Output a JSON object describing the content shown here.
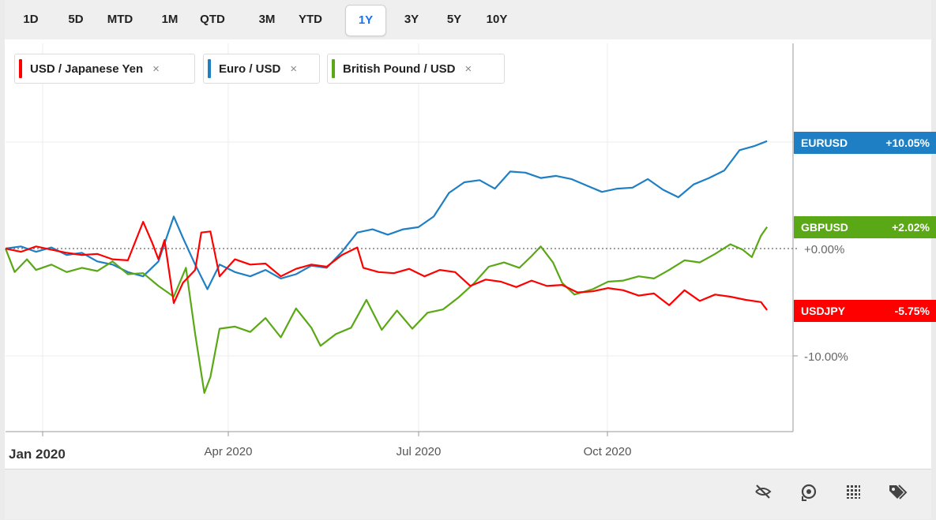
{
  "range_buttons": [
    {
      "label": "1D",
      "active": false
    },
    {
      "label": "5D",
      "active": false
    },
    {
      "label": "MTD",
      "active": false
    },
    {
      "label": "1M",
      "active": false
    },
    {
      "label": "QTD",
      "active": false
    },
    {
      "label": "3M",
      "active": false
    },
    {
      "label": "YTD",
      "active": false
    },
    {
      "label": "1Y",
      "active": true
    },
    {
      "label": "3Y",
      "active": false
    },
    {
      "label": "5Y",
      "active": false
    },
    {
      "label": "10Y",
      "active": false
    }
  ],
  "legend": [
    {
      "label": "USD / Japanese Yen",
      "color": "#ff0000",
      "close": "×"
    },
    {
      "label": "Euro / USD",
      "color": "#1f7fc4",
      "close": "×"
    },
    {
      "label": "British Pound / USD",
      "color": "#5aa815",
      "close": "×"
    }
  ],
  "value_tags": [
    {
      "name": "EURUSD",
      "value": "+10.05%",
      "color": "#1f7fc4"
    },
    {
      "name": "GBPUSD",
      "value": "+2.02%",
      "color": "#5aa815"
    },
    {
      "name": "USDJPY",
      "value": "-5.75%",
      "color": "#ff0000"
    }
  ],
  "toolbar_icons": [
    "crosshair-off-icon",
    "reset-icon",
    "grid-icon",
    "tag-icon"
  ],
  "chart_data": {
    "type": "line",
    "x_labels": [
      "Jan 2020",
      "Apr 2020",
      "Jul 2020",
      "Oct 2020"
    ],
    "y_ticks": [
      "+0.00%",
      "-10.00%"
    ],
    "ylim": [
      -16.5,
      19
    ],
    "x_unit": "trading days since late Dec 2019",
    "xlim": [
      0,
      250
    ],
    "series": [
      {
        "name": "Euro / USD",
        "color": "#1f7fc4",
        "points": [
          [
            0,
            0
          ],
          [
            5,
            0.2
          ],
          [
            10,
            -0.3
          ],
          [
            15,
            0.1
          ],
          [
            20,
            -0.6
          ],
          [
            25,
            -0.4
          ],
          [
            30,
            -1.2
          ],
          [
            35,
            -1.5
          ],
          [
            40,
            -2.2
          ],
          [
            45,
            -2.6
          ],
          [
            50,
            -1.2
          ],
          [
            55,
            3.0
          ],
          [
            58,
            1.0
          ],
          [
            62,
            -1.5
          ],
          [
            66,
            -3.8
          ],
          [
            70,
            -1.5
          ],
          [
            75,
            -2.2
          ],
          [
            80,
            -2.6
          ],
          [
            85,
            -2.0
          ],
          [
            90,
            -2.8
          ],
          [
            95,
            -2.4
          ],
          [
            100,
            -1.6
          ],
          [
            105,
            -1.8
          ],
          [
            110,
            -0.3
          ],
          [
            115,
            1.5
          ],
          [
            120,
            1.8
          ],
          [
            125,
            1.3
          ],
          [
            130,
            1.8
          ],
          [
            135,
            2.0
          ],
          [
            140,
            3.0
          ],
          [
            145,
            5.2
          ],
          [
            150,
            6.2
          ],
          [
            155,
            6.4
          ],
          [
            160,
            5.6
          ],
          [
            165,
            7.2
          ],
          [
            170,
            7.1
          ],
          [
            175,
            6.6
          ],
          [
            180,
            6.8
          ],
          [
            185,
            6.5
          ],
          [
            190,
            5.9
          ],
          [
            195,
            5.3
          ],
          [
            200,
            5.6
          ],
          [
            205,
            5.7
          ],
          [
            210,
            6.5
          ],
          [
            215,
            5.5
          ],
          [
            220,
            4.8
          ],
          [
            225,
            6.0
          ],
          [
            230,
            6.6
          ],
          [
            235,
            7.3
          ],
          [
            240,
            9.2
          ],
          [
            245,
            9.6
          ],
          [
            249,
            10.05
          ]
        ]
      },
      {
        "name": "British Pound / USD",
        "color": "#5aa815",
        "points": [
          [
            0,
            0
          ],
          [
            3,
            -2.2
          ],
          [
            7,
            -1.0
          ],
          [
            10,
            -2.0
          ],
          [
            15,
            -1.5
          ],
          [
            20,
            -2.2
          ],
          [
            25,
            -1.8
          ],
          [
            30,
            -2.1
          ],
          [
            35,
            -1.2
          ],
          [
            40,
            -2.4
          ],
          [
            45,
            -2.3
          ],
          [
            50,
            -3.5
          ],
          [
            55,
            -4.5
          ],
          [
            59,
            -1.8
          ],
          [
            62,
            -8.0
          ],
          [
            65,
            -13.5
          ],
          [
            67,
            -12.0
          ],
          [
            70,
            -7.5
          ],
          [
            75,
            -7.3
          ],
          [
            80,
            -7.8
          ],
          [
            85,
            -6.5
          ],
          [
            90,
            -8.3
          ],
          [
            95,
            -5.6
          ],
          [
            100,
            -7.4
          ],
          [
            103,
            -9.1
          ],
          [
            108,
            -8.0
          ],
          [
            113,
            -7.4
          ],
          [
            118,
            -4.8
          ],
          [
            123,
            -7.6
          ],
          [
            128,
            -5.8
          ],
          [
            133,
            -7.5
          ],
          [
            138,
            -6.0
          ],
          [
            143,
            -5.7
          ],
          [
            148,
            -4.6
          ],
          [
            153,
            -3.3
          ],
          [
            158,
            -1.7
          ],
          [
            163,
            -1.3
          ],
          [
            168,
            -1.8
          ],
          [
            172,
            -0.7
          ],
          [
            175,
            0.2
          ],
          [
            179,
            -1.3
          ],
          [
            182,
            -3.2
          ],
          [
            186,
            -4.3
          ],
          [
            192,
            -3.8
          ],
          [
            197,
            -3.1
          ],
          [
            202,
            -3.0
          ],
          [
            207,
            -2.6
          ],
          [
            212,
            -2.8
          ],
          [
            217,
            -2.0
          ],
          [
            222,
            -1.1
          ],
          [
            227,
            -1.3
          ],
          [
            232,
            -0.5
          ],
          [
            237,
            0.4
          ],
          [
            241,
            -0.1
          ],
          [
            244,
            -0.8
          ],
          [
            247,
            1.2
          ],
          [
            249,
            2.02
          ]
        ]
      },
      {
        "name": "USD / Japanese Yen",
        "color": "#ff0000",
        "points": [
          [
            0,
            0
          ],
          [
            5,
            -0.3
          ],
          [
            10,
            0.2
          ],
          [
            15,
            -0.1
          ],
          [
            20,
            -0.4
          ],
          [
            25,
            -0.6
          ],
          [
            30,
            -0.5
          ],
          [
            35,
            -1.0
          ],
          [
            40,
            -1.1
          ],
          [
            45,
            2.5
          ],
          [
            48,
            0.5
          ],
          [
            50,
            -1.0
          ],
          [
            52,
            0.8
          ],
          [
            55,
            -5.1
          ],
          [
            58,
            -3.2
          ],
          [
            62,
            -2.0
          ],
          [
            64,
            1.5
          ],
          [
            67,
            1.6
          ],
          [
            70,
            -2.6
          ],
          [
            75,
            -1.0
          ],
          [
            80,
            -1.5
          ],
          [
            85,
            -1.4
          ],
          [
            90,
            -2.6
          ],
          [
            95,
            -1.9
          ],
          [
            100,
            -1.5
          ],
          [
            105,
            -1.7
          ],
          [
            110,
            -0.6
          ],
          [
            115,
            0.1
          ],
          [
            117,
            -1.8
          ],
          [
            122,
            -2.2
          ],
          [
            127,
            -2.3
          ],
          [
            132,
            -1.9
          ],
          [
            137,
            -2.6
          ],
          [
            142,
            -2.0
          ],
          [
            147,
            -2.2
          ],
          [
            152,
            -3.5
          ],
          [
            157,
            -2.9
          ],
          [
            162,
            -3.1
          ],
          [
            167,
            -3.6
          ],
          [
            172,
            -3.0
          ],
          [
            177,
            -3.5
          ],
          [
            182,
            -3.4
          ],
          [
            187,
            -4.1
          ],
          [
            192,
            -4.0
          ],
          [
            197,
            -3.7
          ],
          [
            202,
            -3.9
          ],
          [
            207,
            -4.4
          ],
          [
            212,
            -4.2
          ],
          [
            217,
            -5.3
          ],
          [
            222,
            -3.9
          ],
          [
            227,
            -4.9
          ],
          [
            232,
            -4.3
          ],
          [
            237,
            -4.5
          ],
          [
            242,
            -4.8
          ],
          [
            247,
            -5.0
          ],
          [
            249,
            -5.75
          ]
        ]
      }
    ]
  }
}
